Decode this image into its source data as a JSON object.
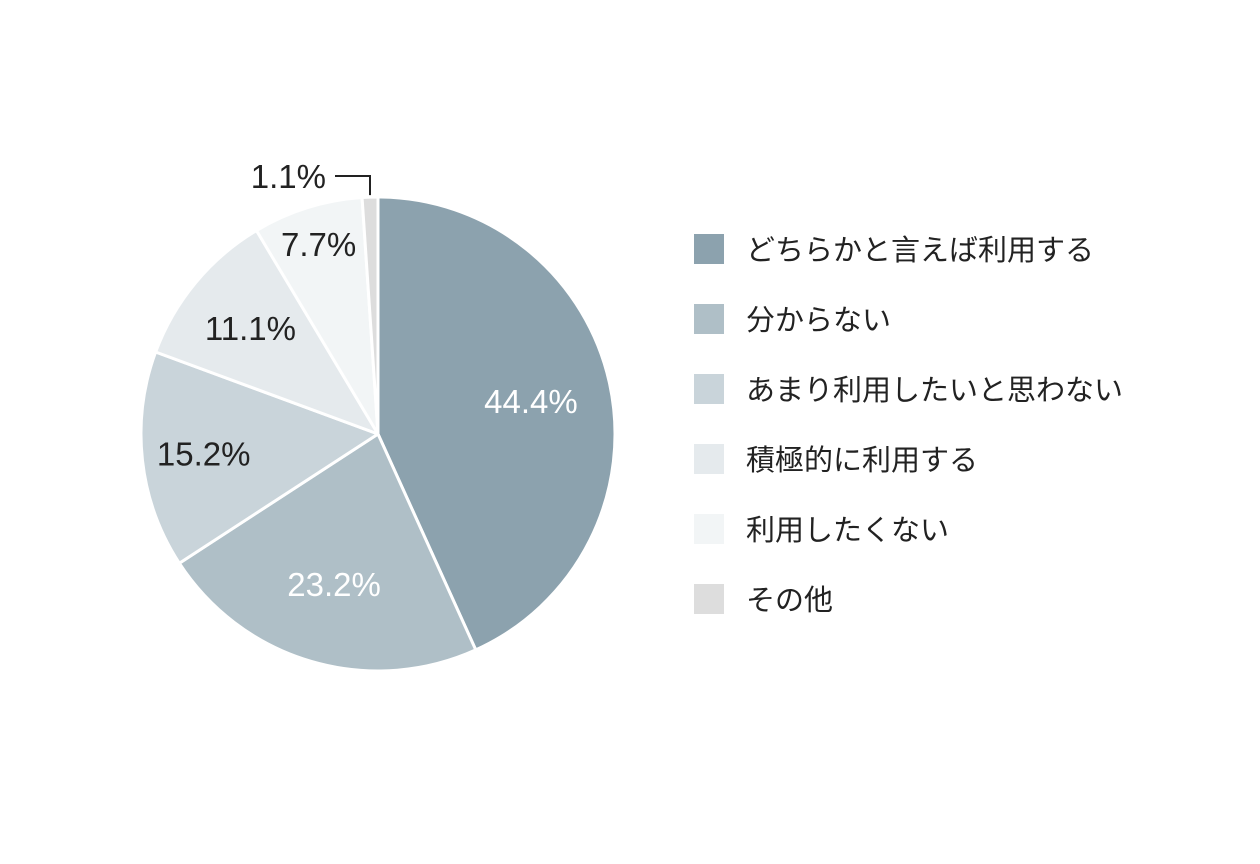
{
  "chart_data": {
    "type": "pie",
    "series": [
      {
        "labels": [
          "どちらかと言えば利用する",
          "分からない",
          "あまり利用したいと思わない",
          "積極的に利用する",
          "利用したくない",
          "その他"
        ],
        "values": [
          44.4,
          23.2,
          15.2,
          11.1,
          7.7,
          1.1
        ],
        "value_labels": [
          "44.4%",
          "23.2%",
          "15.2%",
          "11.1%",
          "7.7%",
          "1.1%"
        ],
        "colors": [
          "#8ca2ae",
          "#afbfc7",
          "#c9d4da",
          "#e5eaed",
          "#f2f5f6",
          "#dddddd"
        ]
      }
    ],
    "legend_position": "right"
  }
}
